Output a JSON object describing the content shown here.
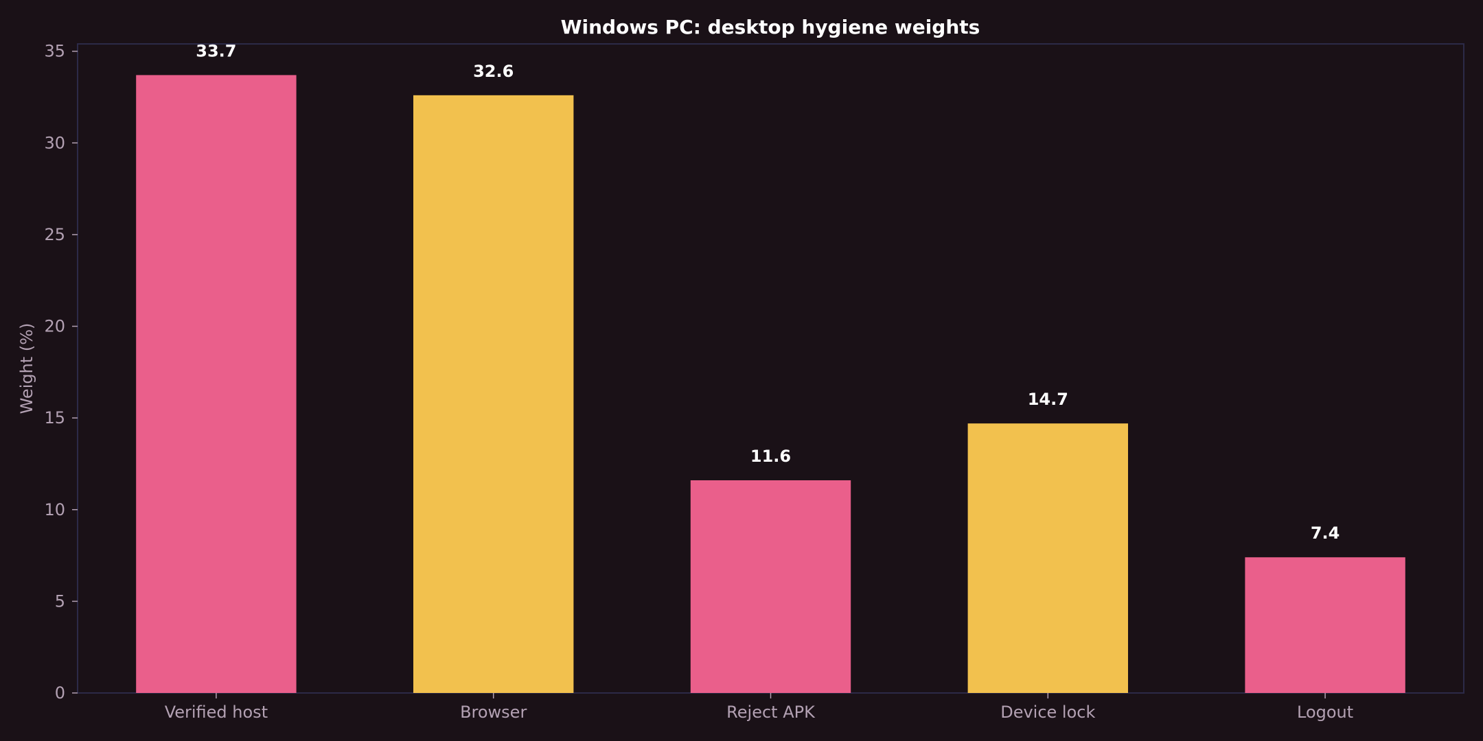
{
  "chart_data": {
    "type": "bar",
    "title": "Windows PC: desktop hygiene weights",
    "xlabel": "",
    "ylabel": "Weight (%)",
    "categories": [
      "Verified host",
      "Browser",
      "Reject APK",
      "Device lock",
      "Logout"
    ],
    "values": [
      33.7,
      32.6,
      11.6,
      14.7,
      7.4
    ],
    "data_labels": [
      "33.7",
      "32.6",
      "11.6",
      "14.7",
      "7.4"
    ],
    "ylim": [
      0,
      35.4
    ],
    "yticks": [
      0,
      5,
      10,
      15,
      20,
      25,
      30,
      35
    ],
    "grid": false,
    "legend": "none",
    "colors": [
      "#ea5f8b",
      "#f2c14e",
      "#ea5f8b",
      "#f2c14e",
      "#ea5f8b"
    ],
    "background": "#1a1117",
    "frame_color": "#2c2a48"
  }
}
